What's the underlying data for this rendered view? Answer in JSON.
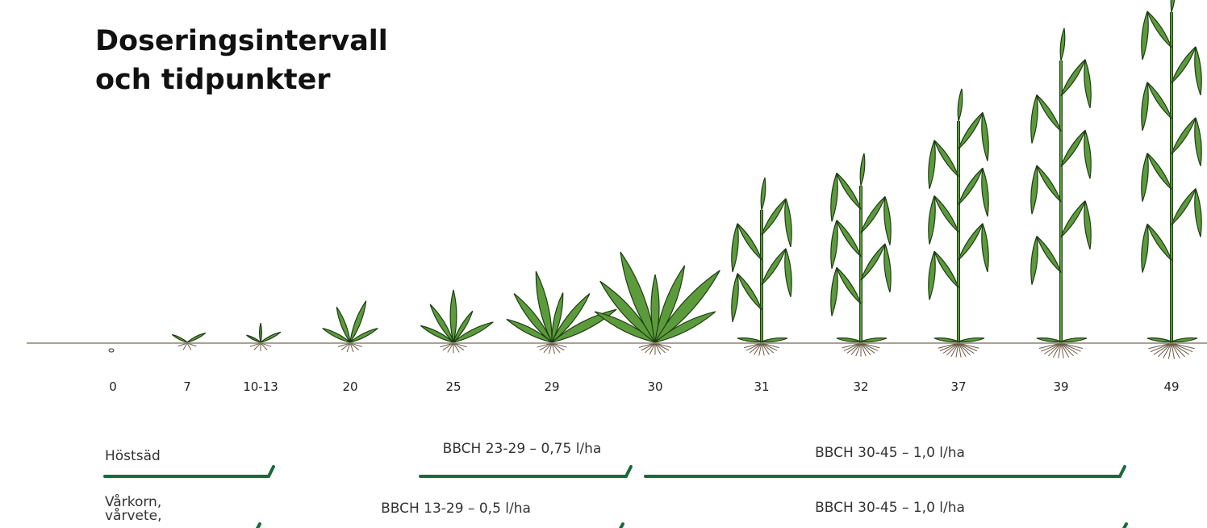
{
  "header": {
    "title_lines": [
      "Doseringsintervall",
      "och tidpunkter"
    ]
  },
  "stages": [
    "0",
    "7",
    "10-13",
    "20",
    "25",
    "29",
    "30",
    "31",
    "32",
    "37",
    "39",
    "49"
  ],
  "rows": [
    {
      "crop_lines": [
        "Höstsäd"
      ],
      "intervals": [
        "BBCH 23-29 – 0,75 l/ha",
        "BBCH 30-45 – 1,0 l/ha"
      ]
    },
    {
      "crop_lines": [
        "Vårkorn,",
        "vårvete,"
      ],
      "intervals": [
        "BBCH 13-29 – 0,5 l/ha",
        "BBCH 30-45 – 1,0 l/ha"
      ]
    }
  ]
}
